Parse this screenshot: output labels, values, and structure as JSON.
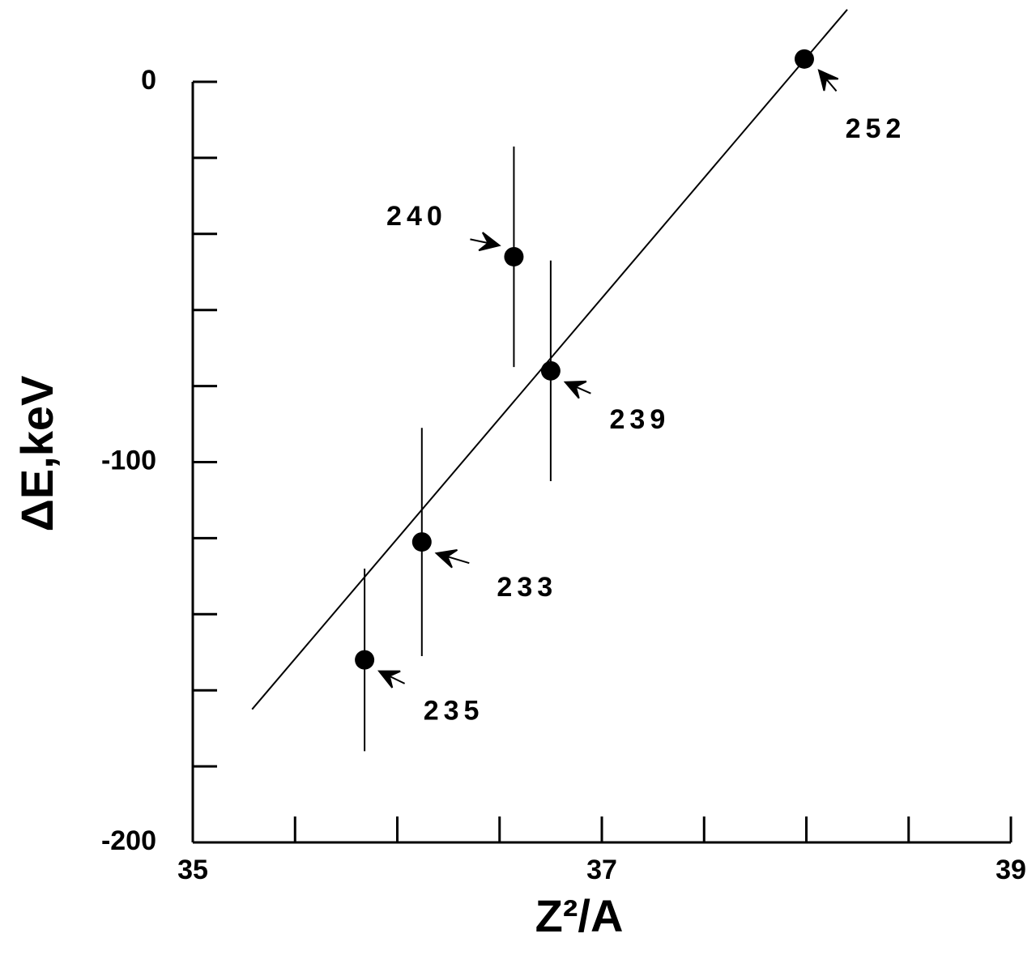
{
  "chart_data": {
    "type": "scatter",
    "x_label": "Z²/A",
    "y_label": "ΔE,keV",
    "xlim": [
      35,
      39
    ],
    "ylim": [
      -200,
      0
    ],
    "xticks": [
      35,
      37,
      39
    ],
    "xminor": [
      35.5,
      36,
      36.5,
      37.5,
      38,
      38.5
    ],
    "yticks": [
      0,
      -100,
      -200
    ],
    "yminor": [
      -20,
      -40,
      -60,
      -80,
      -120,
      -140,
      -160,
      -180
    ],
    "color": "#000000",
    "series": [
      {
        "x": [
          35.84,
          36.12,
          36.57,
          36.75,
          37.99
        ],
        "values": [
          -152,
          -121,
          -46,
          -76,
          6
        ],
        "errors": [
          24,
          30,
          29,
          29,
          null
        ],
        "labels": [
          "235",
          "233",
          "240",
          "239",
          "252"
        ]
      }
    ],
    "fit": {
      "x": [
        35.29,
        38.2
      ],
      "values": [
        -165,
        19
      ]
    }
  }
}
